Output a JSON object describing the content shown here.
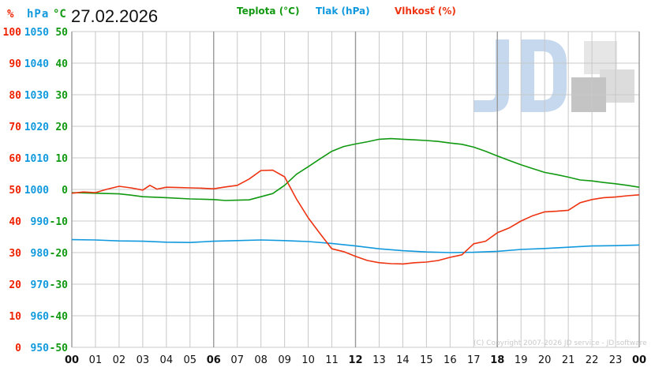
{
  "header": {
    "unit_humidity": "%",
    "unit_pressure": "hPa",
    "unit_temperature": "°C",
    "date": "27.02.2026"
  },
  "legend": {
    "temperature": "Teplota (°C)",
    "pressure": "Tlak (hPa)",
    "humidity": "Vlhkosť (%)"
  },
  "watermark": {
    "logo_text": "JD",
    "copyright": "(C) Copyright 2007-2026 JD service - JD software"
  },
  "colors": {
    "temperature": "#119911",
    "pressure": "#1199dd",
    "humidity": "#ee3311",
    "humidity_axis": "#ee2200",
    "pressure_axis": "#1199dd",
    "temperature_axis": "#119911",
    "grid": "#c8c8c8",
    "grid_major": "#999999"
  },
  "chart_data": {
    "type": "line",
    "x_unit": "hour",
    "xlim": [
      0,
      24
    ],
    "x_tick_labels": [
      "00",
      "01",
      "02",
      "03",
      "04",
      "05",
      "06",
      "07",
      "08",
      "09",
      "10",
      "11",
      "12",
      "13",
      "14",
      "15",
      "16",
      "17",
      "18",
      "19",
      "20",
      "21",
      "22",
      "23",
      "00"
    ],
    "x_major_ticks": [
      "00",
      "06",
      "12",
      "18",
      "00"
    ],
    "y_axes": {
      "humidity": {
        "ylim": [
          0,
          100
        ],
        "ticks": [
          "100",
          "90",
          "80",
          "70",
          "60",
          "50",
          "40",
          "30",
          "20",
          "10",
          "0"
        ]
      },
      "pressure": {
        "ylim": [
          950,
          1050
        ],
        "ticks": [
          "1050",
          "1040",
          "1030",
          "1020",
          "1010",
          "1000",
          "990",
          "980",
          "970",
          "960",
          "950"
        ]
      },
      "temperature": {
        "ylim": [
          -50,
          50
        ],
        "ticks": [
          "50",
          "40",
          "30",
          "20",
          "10",
          "0",
          "-10",
          "-20",
          "-30",
          "-40",
          "-50"
        ]
      }
    },
    "grid": true,
    "series": [
      {
        "name": "Teplota (°C)",
        "axis": "temperature",
        "points": [
          [
            0,
            -1.0
          ],
          [
            1,
            -1.2
          ],
          [
            2,
            -1.4
          ],
          [
            2.5,
            -1.8
          ],
          [
            3,
            -2.3
          ],
          [
            4,
            -2.6
          ],
          [
            5,
            -3.0
          ],
          [
            6,
            -3.2
          ],
          [
            6.5,
            -3.5
          ],
          [
            7,
            -3.4
          ],
          [
            7.5,
            -3.3
          ],
          [
            8,
            -2.3
          ],
          [
            8.5,
            -1.3
          ],
          [
            9,
            1.3
          ],
          [
            9.5,
            4.8
          ],
          [
            10,
            7.2
          ],
          [
            10.5,
            9.7
          ],
          [
            11,
            12.1
          ],
          [
            11.5,
            13.6
          ],
          [
            12,
            14.4
          ],
          [
            12.5,
            15.1
          ],
          [
            13,
            15.9
          ],
          [
            13.5,
            16.1
          ],
          [
            14,
            15.9
          ],
          [
            14.5,
            15.7
          ],
          [
            15,
            15.5
          ],
          [
            15.5,
            15.2
          ],
          [
            16,
            14.7
          ],
          [
            16.5,
            14.3
          ],
          [
            17,
            13.4
          ],
          [
            17.5,
            12.1
          ],
          [
            18,
            10.6
          ],
          [
            18.5,
            9.2
          ],
          [
            19,
            7.8
          ],
          [
            19.5,
            6.6
          ],
          [
            20,
            5.4
          ],
          [
            20.5,
            4.7
          ],
          [
            21,
            3.9
          ],
          [
            21.5,
            3.0
          ],
          [
            22,
            2.7
          ],
          [
            22.5,
            2.2
          ],
          [
            23,
            1.8
          ],
          [
            23.5,
            1.3
          ],
          [
            24,
            0.7
          ]
        ]
      },
      {
        "name": "Tlak (hPa)",
        "axis": "pressure",
        "points": [
          [
            0,
            984.1
          ],
          [
            1,
            984.0
          ],
          [
            2,
            983.7
          ],
          [
            3,
            983.6
          ],
          [
            4,
            983.3
          ],
          [
            5,
            983.2
          ],
          [
            6,
            983.6
          ],
          [
            7,
            983.8
          ],
          [
            8,
            984.0
          ],
          [
            9,
            983.8
          ],
          [
            10,
            983.5
          ],
          [
            11,
            982.9
          ],
          [
            12,
            982.1
          ],
          [
            13,
            981.2
          ],
          [
            14,
            980.6
          ],
          [
            15,
            980.2
          ],
          [
            16,
            980.0
          ],
          [
            17,
            980.1
          ],
          [
            18,
            980.4
          ],
          [
            19,
            981.0
          ],
          [
            20,
            981.3
          ],
          [
            21,
            981.7
          ],
          [
            22,
            982.1
          ],
          [
            23,
            982.2
          ],
          [
            24,
            982.4
          ]
        ]
      },
      {
        "name": "Vlhkosť (%)",
        "axis": "humidity",
        "points": [
          [
            0,
            48.8
          ],
          [
            0.5,
            49.2
          ],
          [
            1,
            49.0
          ],
          [
            1.5,
            50.1
          ],
          [
            2,
            51.0
          ],
          [
            2.5,
            50.5
          ],
          [
            3,
            49.8
          ],
          [
            3.3,
            51.3
          ],
          [
            3.6,
            50.1
          ],
          [
            4,
            50.7
          ],
          [
            4.5,
            50.6
          ],
          [
            5,
            50.5
          ],
          [
            5.5,
            50.4
          ],
          [
            6,
            50.2
          ],
          [
            6.5,
            50.8
          ],
          [
            7,
            51.3
          ],
          [
            7.5,
            53.3
          ],
          [
            8,
            56.0
          ],
          [
            8.5,
            56.1
          ],
          [
            9,
            54.0
          ],
          [
            9.5,
            47.0
          ],
          [
            10,
            41.0
          ],
          [
            10.5,
            36.0
          ],
          [
            11,
            31.2
          ],
          [
            11.5,
            30.3
          ],
          [
            12,
            28.8
          ],
          [
            12.5,
            27.5
          ],
          [
            13,
            26.8
          ],
          [
            13.5,
            26.5
          ],
          [
            14,
            26.4
          ],
          [
            14.5,
            26.8
          ],
          [
            15,
            27.0
          ],
          [
            15.5,
            27.5
          ],
          [
            16,
            28.5
          ],
          [
            16.5,
            29.3
          ],
          [
            17,
            32.8
          ],
          [
            17.5,
            33.6
          ],
          [
            18,
            36.3
          ],
          [
            18.5,
            37.8
          ],
          [
            19,
            40.0
          ],
          [
            19.5,
            41.7
          ],
          [
            20,
            42.9
          ],
          [
            20.5,
            43.1
          ],
          [
            21,
            43.4
          ],
          [
            21.5,
            45.8
          ],
          [
            22,
            46.8
          ],
          [
            22.5,
            47.4
          ],
          [
            23,
            47.6
          ],
          [
            23.5,
            48.0
          ],
          [
            24,
            48.3
          ]
        ]
      }
    ]
  }
}
